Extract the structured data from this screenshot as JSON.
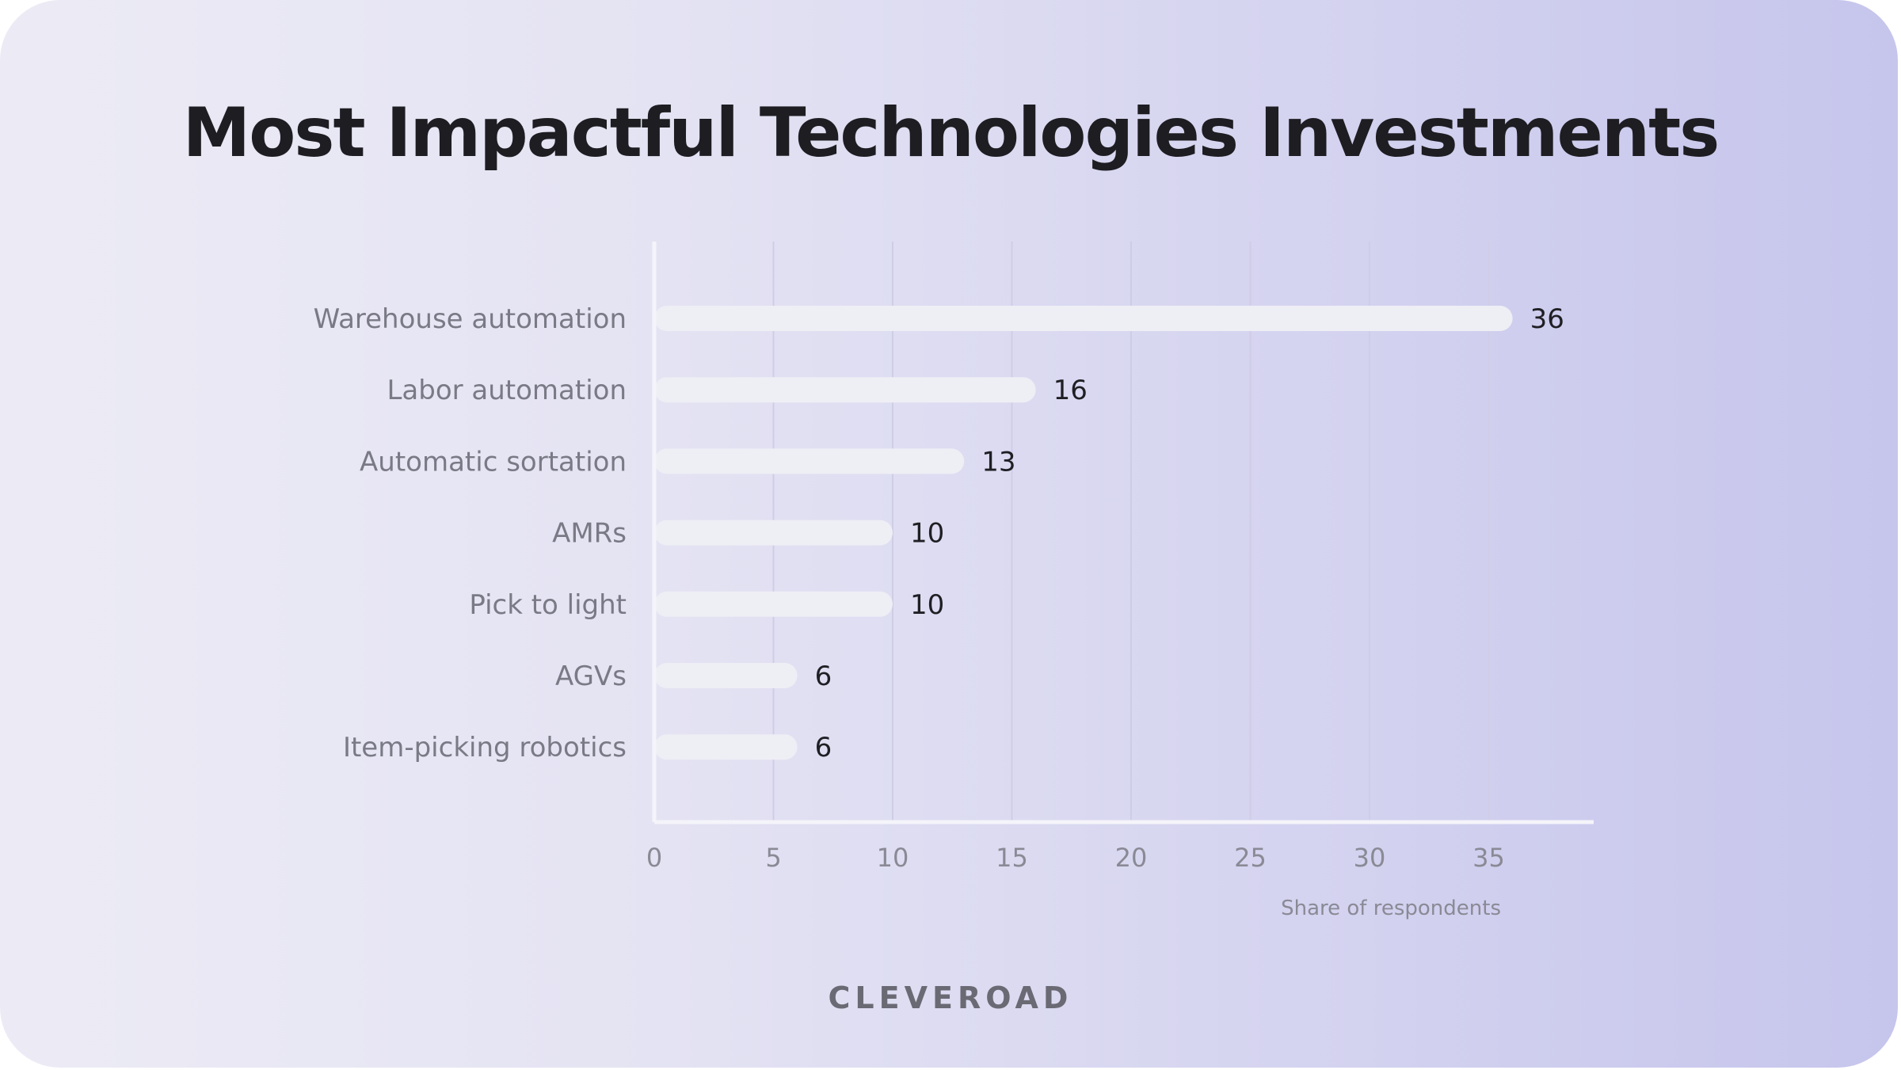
{
  "brand": "CLEVEROAD",
  "chart_data": {
    "type": "bar",
    "orientation": "horizontal",
    "title": "Most Impactful Technologies Investments",
    "xlabel": "Share of respondents",
    "ylabel": "",
    "categories": [
      "Warehouse automation",
      "Labor automation",
      "Automatic sortation",
      "AMRs",
      "Pick to light",
      "AGVs",
      "Item-picking robotics"
    ],
    "values": [
      36,
      16,
      13,
      10,
      10,
      6,
      6
    ],
    "xlim": [
      0,
      39.5
    ],
    "xticks": [
      0,
      5,
      10,
      15,
      20,
      25,
      30,
      35
    ],
    "grid": "vertical",
    "legend": "none",
    "colors": {
      "bar": "#eeeef5",
      "category_label": "#7a7a86",
      "value_label": "#1f1f24",
      "tick_label": "#8a8a96",
      "gridline": "#cfcde6",
      "axis": "#f4f4fa"
    }
  }
}
